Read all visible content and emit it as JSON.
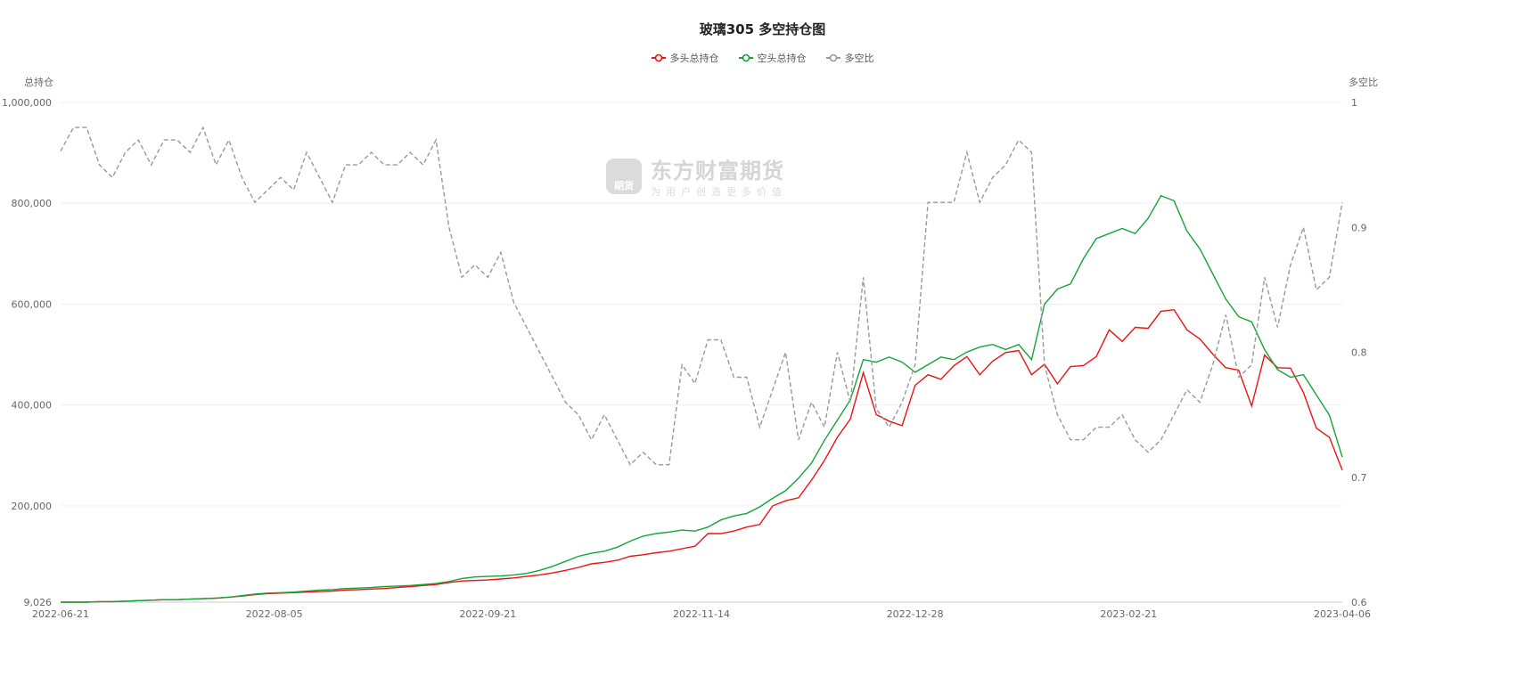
{
  "chart_data": {
    "type": "line",
    "title": "玻璃305 多空持仓图",
    "ylabel_left": "总持仓",
    "ylabel_right": "多空比",
    "ylim_left": [
      9026,
      1000000
    ],
    "ylim_right": [
      0.6,
      1.0
    ],
    "yticks_left": [
      "1,000,000",
      "800,000",
      "600,000",
      "400,000",
      "200,000",
      "9,026"
    ],
    "yticks_left_values": [
      1000000,
      800000,
      600000,
      400000,
      200000,
      9026
    ],
    "yticks_right": [
      "1",
      "0.9",
      "0.8",
      "0.7",
      "0.6"
    ],
    "yticks_right_values": [
      1,
      0.9,
      0.8,
      0.7,
      0.6
    ],
    "xticks": [
      "2022-06-21",
      "2022-08-05",
      "2022-09-21",
      "2022-11-14",
      "2022-12-28",
      "2023-02-21",
      "2023-04-06"
    ],
    "legend_position": "top-center",
    "grid": true,
    "series": [
      {
        "name": "多头总持仓",
        "color": "#ee1111",
        "axis": "left",
        "dashed": false,
        "unit": "thousand",
        "values": [
          9,
          9,
          9,
          10,
          10,
          11,
          12,
          13,
          14,
          14,
          15,
          16,
          17,
          19,
          21,
          24,
          26,
          27,
          28,
          29,
          30,
          31,
          33,
          34,
          35,
          36,
          38,
          40,
          42,
          44,
          48,
          51,
          52,
          53,
          55,
          57,
          60,
          63,
          67,
          72,
          78,
          85,
          88,
          92,
          100,
          103,
          107,
          110,
          115,
          120,
          145,
          145,
          150,
          158,
          163,
          200,
          210,
          216,
          251,
          290,
          336,
          372,
          464,
          381,
          368,
          359,
          439,
          460,
          451,
          478,
          496,
          460,
          487,
          504,
          508,
          460,
          481,
          442,
          476,
          478,
          496,
          549,
          526,
          554,
          552,
          586,
          589,
          549,
          531,
          501,
          474,
          469,
          398,
          499,
          474,
          473,
          425,
          354,
          336,
          271
        ]
      },
      {
        "name": "空头总持仓",
        "color": "#13a538",
        "axis": "left",
        "dashed": false,
        "unit": "thousand",
        "values": [
          9,
          9,
          9,
          10,
          10,
          11,
          12,
          13,
          14,
          14,
          15,
          16,
          17,
          19,
          22,
          25,
          27,
          28,
          29,
          31,
          33,
          34,
          36,
          37,
          38,
          40,
          41,
          42,
          44,
          46,
          50,
          56,
          59,
          60,
          61,
          63,
          66,
          72,
          80,
          90,
          100,
          106,
          110,
          118,
          130,
          140,
          145,
          148,
          152,
          150,
          158,
          172,
          180,
          185,
          198,
          215,
          230,
          255,
          285,
          330,
          370,
          410,
          490,
          485,
          495,
          485,
          465,
          480,
          495,
          490,
          505,
          515,
          520,
          510,
          520,
          490,
          600,
          630,
          640,
          690,
          730,
          740,
          750,
          740,
          770,
          815,
          805,
          745,
          710,
          660,
          610,
          575,
          565,
          510,
          470,
          455,
          460,
          420,
          380,
          297
        ]
      },
      {
        "name": "多空比",
        "color": "#999999",
        "axis": "right",
        "dashed": true,
        "values": [
          0.961,
          0.98,
          0.98,
          0.95,
          0.94,
          0.96,
          0.97,
          0.95,
          0.97,
          0.97,
          0.96,
          0.98,
          0.95,
          0.97,
          0.94,
          0.92,
          0.93,
          0.94,
          0.93,
          0.96,
          0.94,
          0.92,
          0.95,
          0.95,
          0.96,
          0.95,
          0.95,
          0.96,
          0.95,
          0.97,
          0.9,
          0.86,
          0.87,
          0.86,
          0.88,
          0.84,
          0.82,
          0.8,
          0.78,
          0.76,
          0.75,
          0.73,
          0.75,
          0.73,
          0.71,
          0.72,
          0.71,
          0.71,
          0.79,
          0.775,
          0.81,
          0.81,
          0.78,
          0.78,
          0.74,
          0.77,
          0.8,
          0.73,
          0.76,
          0.74,
          0.8,
          0.76,
          0.86,
          0.755,
          0.74,
          0.76,
          0.79,
          0.92,
          0.92,
          0.92,
          0.96,
          0.92,
          0.94,
          0.95,
          0.97,
          0.96,
          0.79,
          0.75,
          0.73,
          0.73,
          0.74,
          0.74,
          0.75,
          0.73,
          0.72,
          0.73,
          0.75,
          0.77,
          0.76,
          0.79,
          0.83,
          0.78,
          0.79,
          0.86,
          0.82,
          0.87,
          0.9,
          0.85,
          0.86,
          0.92
        ]
      }
    ]
  },
  "watermark": {
    "brand": "东方财富期货",
    "slogan": "为用户创造更多价值",
    "logo_text": "期货"
  },
  "colors": {
    "grid": "#f0f0f0",
    "axis_text": "#666666"
  }
}
